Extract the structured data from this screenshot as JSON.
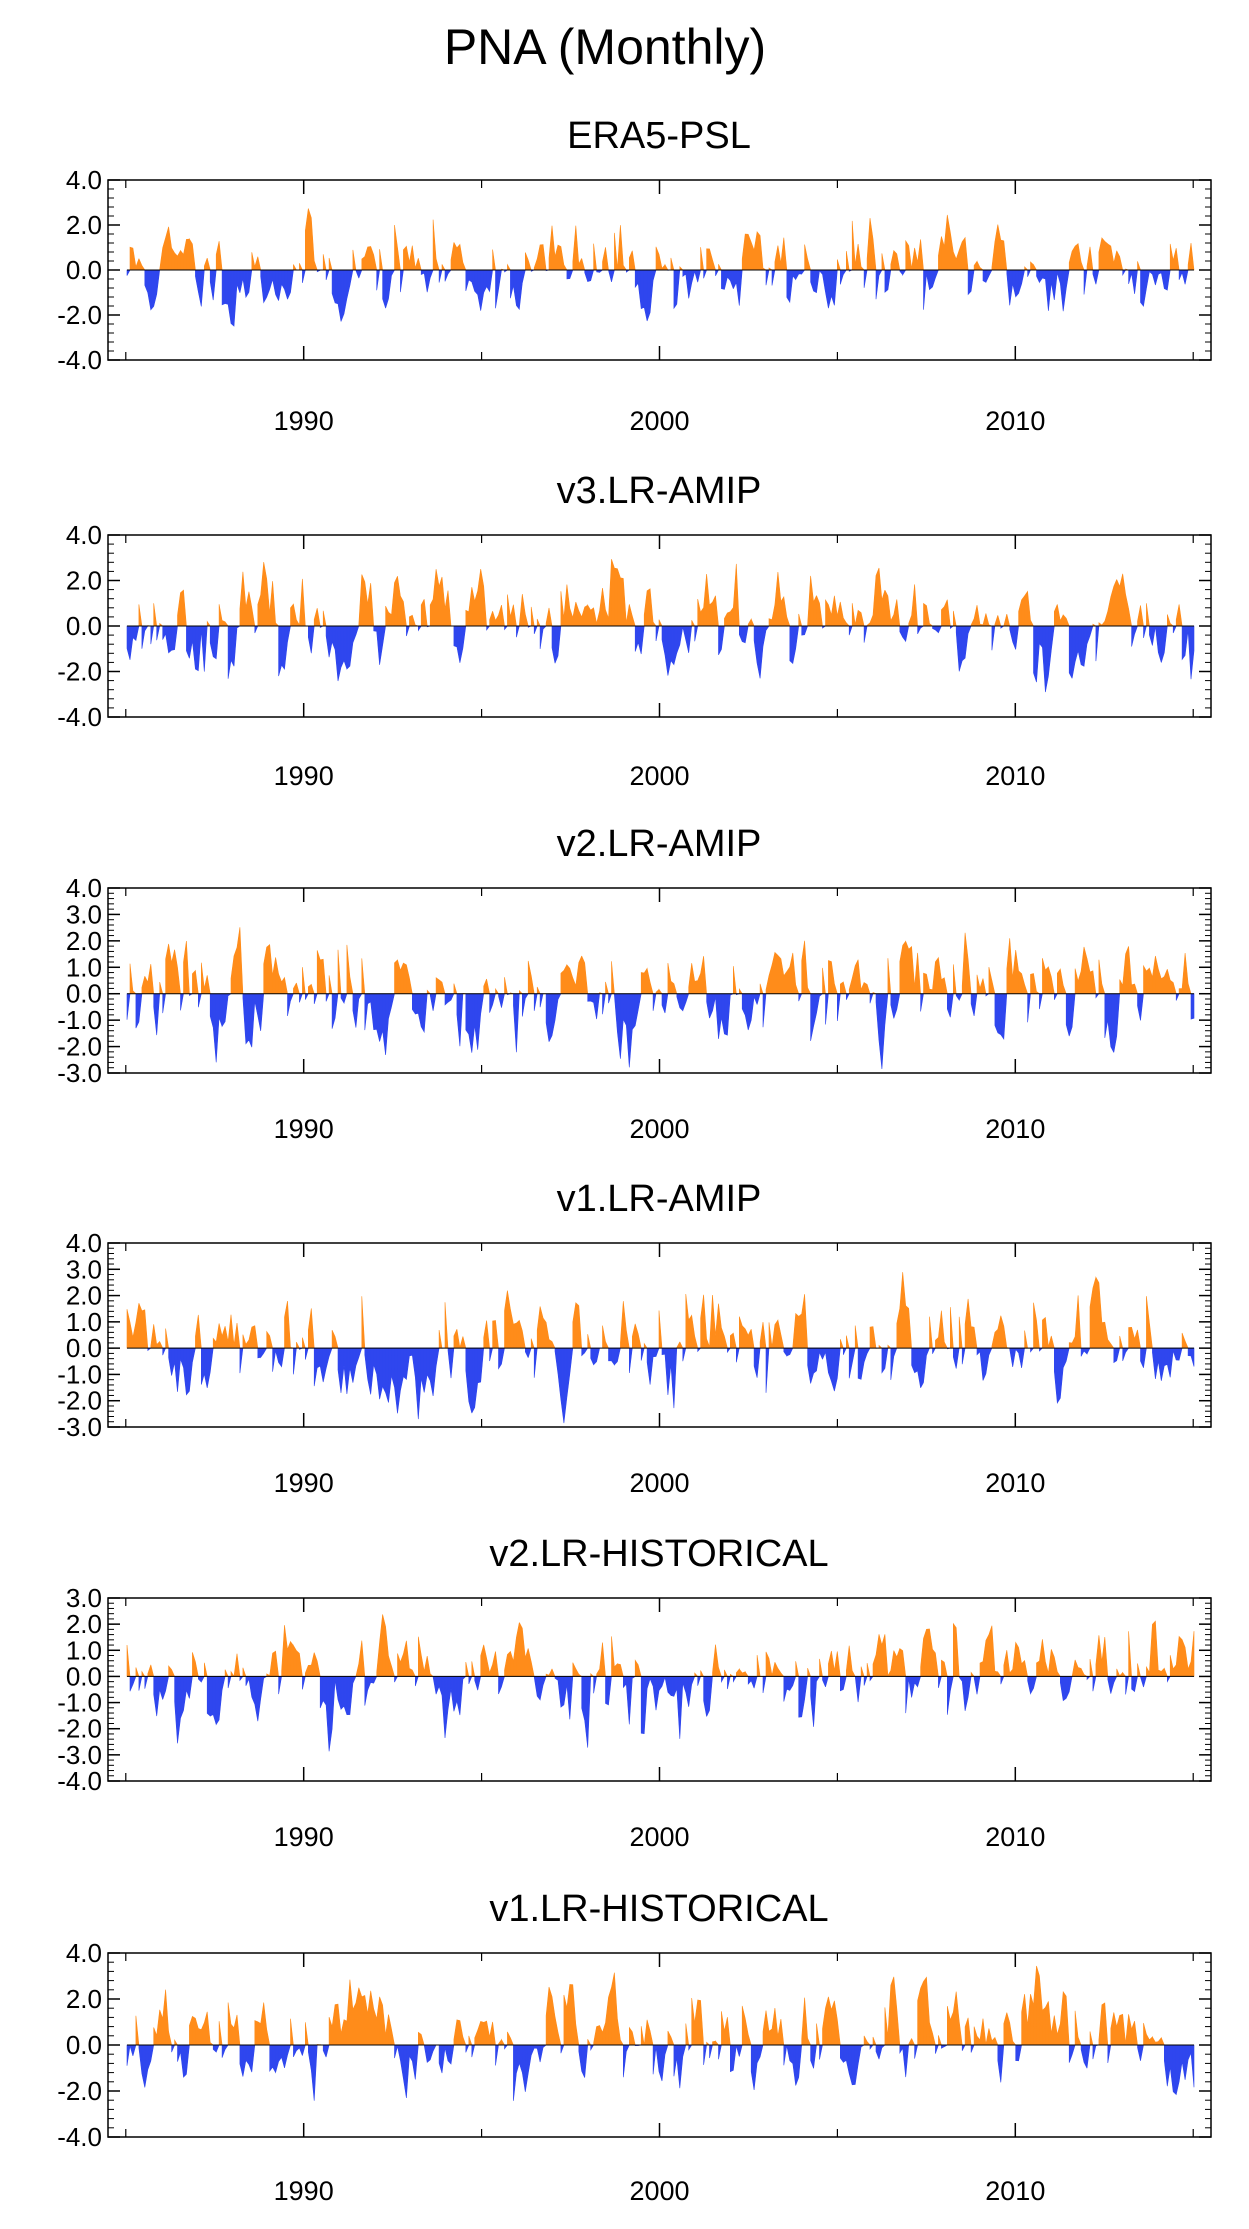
{
  "title": "PNA (Monthly)",
  "colors": {
    "positive": "#ff8c1a",
    "negative": "#2f46ee",
    "frame": "#000000"
  },
  "chart_data": [
    {
      "type": "area",
      "title": "ERA5-PSL",
      "xlim": [
        1984.5,
        2015.5
      ],
      "xticks": [
        1990,
        2000,
        2010
      ],
      "xtick_labels": [
        "1990",
        "2000",
        "2010"
      ],
      "ylim": [
        -4,
        4
      ],
      "yticks": [
        4,
        2,
        0,
        -2,
        -4
      ],
      "ytick_labels": [
        "4.0",
        "2.0",
        "0.0",
        "-2.0",
        "-4.0"
      ],
      "seed": 11,
      "amp": 1.05
    },
    {
      "type": "area",
      "title": "v3.LR-AMIP",
      "xlim": [
        1984.5,
        2015.5
      ],
      "xticks": [
        1990,
        2000,
        2010
      ],
      "xtick_labels": [
        "1990",
        "2000",
        "2010"
      ],
      "ylim": [
        -4,
        4
      ],
      "yticks": [
        4,
        2,
        0,
        -2,
        -4
      ],
      "ytick_labels": [
        "4.0",
        "2.0",
        "0.0",
        "-2.0",
        "-4.0"
      ],
      "seed": 23,
      "amp": 1.05
    },
    {
      "type": "area",
      "title": "v2.LR-AMIP",
      "xlim": [
        1984.5,
        2015.5
      ],
      "xticks": [
        1990,
        2000,
        2010
      ],
      "xtick_labels": [
        "1990",
        "2000",
        "2010"
      ],
      "ylim": [
        -3,
        4
      ],
      "yticks": [
        4,
        3,
        2,
        1,
        0,
        -1,
        -2,
        -3
      ],
      "ytick_labels": [
        "4.0",
        "3.0",
        "2.0",
        "1.0",
        "0.0",
        "-1.0",
        "-2.0",
        "-3.0"
      ],
      "seed": 37,
      "amp": 1.05
    },
    {
      "type": "area",
      "title": "v1.LR-AMIP",
      "xlim": [
        1984.5,
        2015.5
      ],
      "xticks": [
        1990,
        2000,
        2010
      ],
      "xtick_labels": [
        "1990",
        "2000",
        "2010"
      ],
      "ylim": [
        -3,
        4
      ],
      "yticks": [
        4,
        3,
        2,
        1,
        0,
        -1,
        -2,
        -3
      ],
      "ytick_labels": [
        "4.0",
        "3.0",
        "2.0",
        "1.0",
        "0.0",
        "-1.0",
        "-2.0",
        "-3.0"
      ],
      "seed": 41,
      "amp": 1.05
    },
    {
      "type": "area",
      "title": "v2.LR-HISTORICAL",
      "xlim": [
        1984.5,
        2015.5
      ],
      "xticks": [
        1990,
        2000,
        2010
      ],
      "xtick_labels": [
        "1990",
        "2000",
        "2010"
      ],
      "ylim": [
        -4,
        3
      ],
      "yticks": [
        3,
        2,
        1,
        0,
        -1,
        -2,
        -3,
        -4
      ],
      "ytick_labels": [
        "3.0",
        "2.0",
        "1.0",
        "0.0",
        "-1.0",
        "-2.0",
        "-3.0",
        "-4.0"
      ],
      "seed": 53,
      "amp": 1.0
    },
    {
      "type": "area",
      "title": "v1.LR-HISTORICAL",
      "xlim": [
        1984.5,
        2015.5
      ],
      "xticks": [
        1990,
        2000,
        2010
      ],
      "xtick_labels": [
        "1990",
        "2000",
        "2010"
      ],
      "ylim": [
        -4,
        4
      ],
      "yticks": [
        4,
        2,
        0,
        -2,
        -4
      ],
      "ytick_labels": [
        "4.0",
        "2.0",
        "0.0",
        "-2.0",
        "-4.0"
      ],
      "seed": 67,
      "amp": 1.05
    }
  ]
}
